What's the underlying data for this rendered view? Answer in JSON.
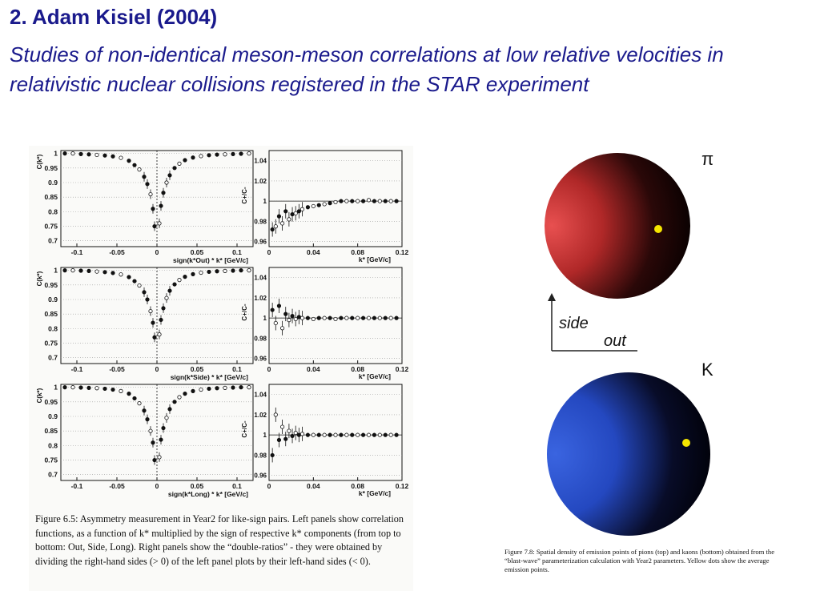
{
  "slide": {
    "title": "2. Adam Kisiel (2004)",
    "subtitle": "Studies of non-identical meson-meson correlations at low relative velocities in relativistic nuclear collisions registered in the STAR experiment"
  },
  "left_figure": {
    "caption": "Figure 6.5: Asymmetry measurement in Year2 for like-sign pairs. Left panels show correlation functions, as a function of k* multiplied by the sign of respective k* components (from top to bottom: Out, Side, Long). Right panels show the “double-ratios” - they were obtained by dividing the right-hand sides (> 0) of the left panel plots by their left-hand sides (< 0).",
    "y_label_cf": "C(k*)",
    "y_label_ratio": "C+/C-",
    "x_label_ratio": "k* [GeV/c]",
    "x_labels_cf": [
      "sign(k*Out) * k* [GeV/c]",
      "sign(k*Side) * k* [GeV/c]",
      "sign(k*Long) * k* [GeV/c]"
    ],
    "cf_yticks": [
      "1",
      "0.95",
      "0.9",
      "0.85",
      "0.8",
      "0.75",
      "0.7"
    ],
    "cf_xticks": [
      "-0.1",
      "-0.05",
      "0",
      "0.05",
      "0.1"
    ],
    "ratio_yticks": [
      "1.04",
      "1.02",
      "1",
      "0.98",
      "0.96"
    ],
    "ratio_xticks": [
      "0",
      "0.04",
      "0.08",
      "0.12"
    ]
  },
  "chart_data": [
    {
      "type": "scatter",
      "panel": "Out correlation function",
      "xlabel": "sign(k*Out) * k* [GeV/c]",
      "ylabel": "C(k*)",
      "xlim": [
        -0.12,
        0.12
      ],
      "ylim": [
        0.68,
        1.01
      ],
      "x": [
        -0.115,
        -0.105,
        -0.095,
        -0.085,
        -0.075,
        -0.065,
        -0.055,
        -0.045,
        -0.035,
        -0.028,
        -0.022,
        -0.016,
        -0.012,
        -0.008,
        -0.005,
        -0.003,
        0.003,
        0.005,
        0.008,
        0.012,
        0.016,
        0.022,
        0.028,
        0.035,
        0.045,
        0.055,
        0.065,
        0.075,
        0.085,
        0.095,
        0.105,
        0.115
      ],
      "y": [
        1.0,
        1.0,
        0.998,
        0.997,
        0.995,
        0.993,
        0.99,
        0.985,
        0.975,
        0.96,
        0.945,
        0.92,
        0.895,
        0.86,
        0.81,
        0.75,
        0.76,
        0.82,
        0.865,
        0.9,
        0.925,
        0.95,
        0.965,
        0.977,
        0.986,
        0.991,
        0.994,
        0.996,
        0.997,
        0.998,
        0.999,
        1.0
      ]
    },
    {
      "type": "scatter",
      "panel": "Side correlation function",
      "xlabel": "sign(k*Side) * k* [GeV/c]",
      "ylabel": "C(k*)",
      "xlim": [
        -0.12,
        0.12
      ],
      "ylim": [
        0.68,
        1.01
      ],
      "x": [
        -0.115,
        -0.105,
        -0.095,
        -0.085,
        -0.075,
        -0.065,
        -0.055,
        -0.045,
        -0.035,
        -0.028,
        -0.022,
        -0.016,
        -0.012,
        -0.008,
        -0.005,
        -0.003,
        0.003,
        0.005,
        0.008,
        0.012,
        0.016,
        0.022,
        0.028,
        0.035,
        0.045,
        0.055,
        0.065,
        0.075,
        0.085,
        0.095,
        0.105,
        0.115
      ],
      "y": [
        1.0,
        1.0,
        0.999,
        0.998,
        0.996,
        0.994,
        0.991,
        0.986,
        0.977,
        0.963,
        0.948,
        0.925,
        0.9,
        0.86,
        0.82,
        0.77,
        0.78,
        0.83,
        0.87,
        0.905,
        0.93,
        0.952,
        0.967,
        0.978,
        0.987,
        0.992,
        0.995,
        0.997,
        0.998,
        0.999,
        1.0,
        1.0
      ]
    },
    {
      "type": "scatter",
      "panel": "Long correlation function",
      "xlabel": "sign(k*Long) * k* [GeV/c]",
      "ylabel": "C(k*)",
      "xlim": [
        -0.12,
        0.12
      ],
      "ylim": [
        0.68,
        1.01
      ],
      "x": [
        -0.115,
        -0.105,
        -0.095,
        -0.085,
        -0.075,
        -0.065,
        -0.055,
        -0.045,
        -0.035,
        -0.028,
        -0.022,
        -0.016,
        -0.012,
        -0.008,
        -0.005,
        -0.003,
        0.003,
        0.005,
        0.008,
        0.012,
        0.016,
        0.022,
        0.028,
        0.035,
        0.045,
        0.055,
        0.065,
        0.075,
        0.085,
        0.095,
        0.105,
        0.115
      ],
      "y": [
        1.0,
        1.0,
        0.999,
        0.998,
        0.997,
        0.995,
        0.992,
        0.987,
        0.978,
        0.962,
        0.945,
        0.92,
        0.89,
        0.85,
        0.81,
        0.75,
        0.76,
        0.82,
        0.86,
        0.895,
        0.925,
        0.95,
        0.966,
        0.978,
        0.987,
        0.992,
        0.995,
        0.997,
        0.998,
        0.999,
        1.0,
        1.0
      ]
    },
    {
      "type": "scatter",
      "panel": "Out double ratio",
      "xlabel": "k* [GeV/c]",
      "ylabel": "C+/C-",
      "xlim": [
        0,
        0.12
      ],
      "ylim": [
        0.955,
        1.05
      ],
      "x": [
        0.003,
        0.006,
        0.009,
        0.012,
        0.015,
        0.018,
        0.021,
        0.024,
        0.027,
        0.03,
        0.035,
        0.04,
        0.045,
        0.05,
        0.055,
        0.06,
        0.065,
        0.07,
        0.075,
        0.08,
        0.085,
        0.09,
        0.095,
        0.1,
        0.105,
        0.11,
        0.115
      ],
      "y": [
        0.972,
        0.975,
        0.985,
        0.978,
        0.99,
        0.982,
        0.987,
        0.988,
        0.99,
        0.992,
        0.994,
        0.995,
        0.996,
        0.997,
        0.998,
        0.999,
        1.0,
        1.0,
        1.0,
        1.0,
        1.0,
        1.001,
        1.0,
        1.0,
        1.0,
        1.0,
        1.0
      ]
    },
    {
      "type": "scatter",
      "panel": "Side double ratio",
      "xlabel": "k* [GeV/c]",
      "ylabel": "C+/C-",
      "xlim": [
        0,
        0.12
      ],
      "ylim": [
        0.955,
        1.05
      ],
      "x": [
        0.003,
        0.006,
        0.009,
        0.012,
        0.015,
        0.018,
        0.021,
        0.024,
        0.027,
        0.03,
        0.035,
        0.04,
        0.045,
        0.05,
        0.055,
        0.06,
        0.065,
        0.07,
        0.075,
        0.08,
        0.085,
        0.09,
        0.095,
        0.1,
        0.105,
        0.11,
        0.115
      ],
      "y": [
        1.008,
        0.995,
        1.012,
        0.99,
        1.004,
        0.998,
        1.002,
        0.999,
        1.001,
        1.0,
        1.0,
        0.999,
        1.0,
        1.0,
        1.0,
        0.999,
        1.0,
        1.0,
        1.0,
        1.0,
        1.0,
        1.0,
        1.0,
        1.0,
        1.0,
        1.0,
        1.0
      ]
    },
    {
      "type": "scatter",
      "panel": "Long double ratio",
      "xlabel": "k* [GeV/c]",
      "ylabel": "C+/C-",
      "xlim": [
        0,
        0.12
      ],
      "ylim": [
        0.955,
        1.05
      ],
      "x": [
        0.003,
        0.006,
        0.009,
        0.012,
        0.015,
        0.018,
        0.021,
        0.024,
        0.027,
        0.03,
        0.035,
        0.04,
        0.045,
        0.05,
        0.055,
        0.06,
        0.065,
        0.07,
        0.075,
        0.08,
        0.085,
        0.09,
        0.095,
        0.1,
        0.105,
        0.11,
        0.115
      ],
      "y": [
        0.98,
        1.02,
        0.995,
        1.008,
        0.996,
        1.004,
        0.999,
        1.002,
        1.0,
        1.001,
        1.0,
        1.0,
        1.0,
        1.0,
        1.0,
        1.0,
        1.0,
        1.0,
        1.0,
        1.0,
        1.0,
        1.0,
        1.0,
        1.0,
        1.0,
        1.0,
        1.0
      ]
    }
  ],
  "right_figure": {
    "pion_label": "π",
    "kaon_label": "K",
    "axis_side_label": "side",
    "axis_out_label": "out",
    "caption": "Figure 7.8: Spatial density of emission points of pions (top) and kaons (bottom) obtained from the “blast-wave” parameterization calculation with Year2 parameters. Yellow dots show the average emission points.",
    "colors": {
      "pion": "#e03a3a",
      "kaon": "#2a56d8",
      "dot": "#f5e600"
    }
  }
}
